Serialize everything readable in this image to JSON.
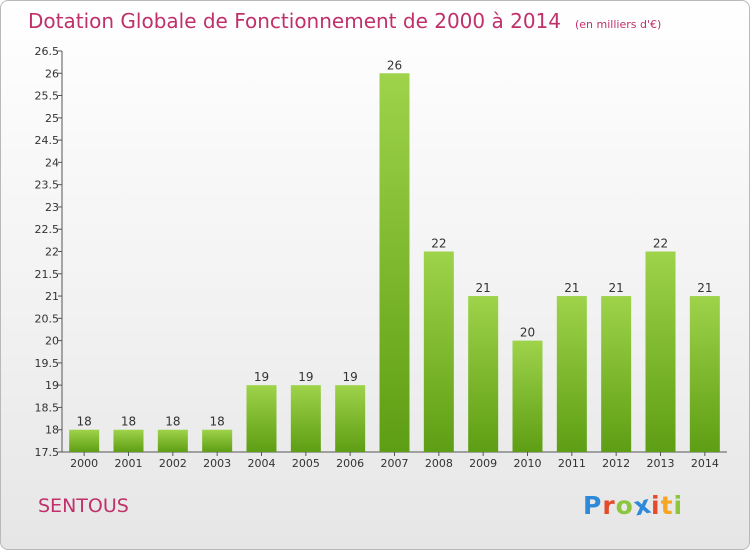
{
  "title": "Dotation Globale de Fonctionnement de 2000 à 2014",
  "subtitle": "(en milliers d'€)",
  "commune": "SENTOUS",
  "logo": {
    "text": "Proxiti",
    "letter_colors": [
      "#2e8ad8",
      "#e34c2b",
      "#8cc63f",
      "#2e8ad8",
      "#e34c2b",
      "#f5a623",
      "#8cc63f"
    ]
  },
  "colors": {
    "bar_light": "#9ed34a",
    "bar_dark": "#5e9e14",
    "axis": "#555555",
    "title": "#c0306a"
  },
  "chart_data": {
    "type": "bar",
    "title": "Dotation Globale de Fonctionnement de 2000 à 2014",
    "subtitle": "(en milliers d'€)",
    "categories": [
      "2000",
      "2001",
      "2002",
      "2003",
      "2004",
      "2005",
      "2006",
      "2007",
      "2008",
      "2009",
      "2010",
      "2011",
      "2012",
      "2013",
      "2014"
    ],
    "values": [
      18,
      18,
      18,
      18,
      19,
      19,
      19,
      26,
      22,
      21,
      20,
      21,
      21,
      22,
      21
    ],
    "value_labels": [
      "18",
      "18",
      "18",
      "18",
      "19",
      "19",
      "19",
      "26",
      "22",
      "21",
      "20",
      "21",
      "21",
      "22",
      "21"
    ],
    "ylim": [
      17.5,
      26.5
    ],
    "y_ticks": [
      "17.5",
      "18",
      "18.5",
      "19",
      "19.5",
      "20",
      "20.5",
      "21",
      "21.5",
      "22",
      "22.5",
      "23",
      "23.5",
      "24",
      "24.5",
      "25",
      "25.5",
      "26",
      "26.5"
    ],
    "xlabel": "",
    "ylabel": "",
    "grid": false
  }
}
